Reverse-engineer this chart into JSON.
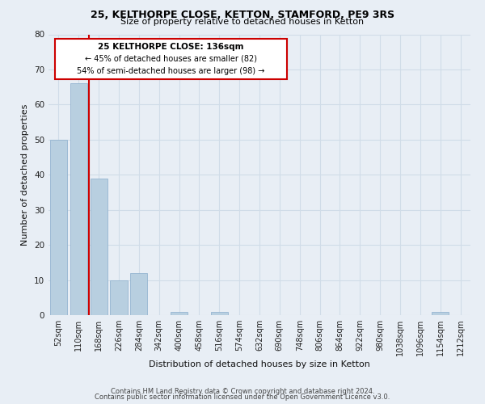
{
  "title1": "25, KELTHORPE CLOSE, KETTON, STAMFORD, PE9 3RS",
  "title2": "Size of property relative to detached houses in Ketton",
  "xlabel": "Distribution of detached houses by size in Ketton",
  "ylabel": "Number of detached properties",
  "bar_labels": [
    "52sqm",
    "110sqm",
    "168sqm",
    "226sqm",
    "284sqm",
    "342sqm",
    "400sqm",
    "458sqm",
    "516sqm",
    "574sqm",
    "632sqm",
    "690sqm",
    "748sqm",
    "806sqm",
    "864sqm",
    "922sqm",
    "980sqm",
    "1038sqm",
    "1096sqm",
    "1154sqm",
    "1212sqm"
  ],
  "bar_values": [
    50,
    66,
    39,
    10,
    12,
    0,
    1,
    0,
    1,
    0,
    0,
    0,
    0,
    0,
    0,
    0,
    0,
    0,
    0,
    1,
    0
  ],
  "bar_color": "#b8cfe0",
  "vline_color": "#cc0000",
  "vline_x": 1.5,
  "annotation_title": "25 KELTHORPE CLOSE: 136sqm",
  "annotation_line1": "← 45% of detached houses are smaller (82)",
  "annotation_line2": "54% of semi-detached houses are larger (98) →",
  "annotation_box_color": "#ffffff",
  "annotation_box_edge": "#cc0000",
  "ylim": [
    0,
    80
  ],
  "yticks": [
    0,
    10,
    20,
    30,
    40,
    50,
    60,
    70,
    80
  ],
  "footer1": "Contains HM Land Registry data © Crown copyright and database right 2024.",
  "footer2": "Contains public sector information licensed under the Open Government Licence v3.0.",
  "grid_color": "#d0dce8",
  "bg_color": "#e8eef5",
  "title_fontsize": 9,
  "subtitle_fontsize": 8,
  "tick_fontsize": 7,
  "label_fontsize": 8,
  "footer_fontsize": 6
}
